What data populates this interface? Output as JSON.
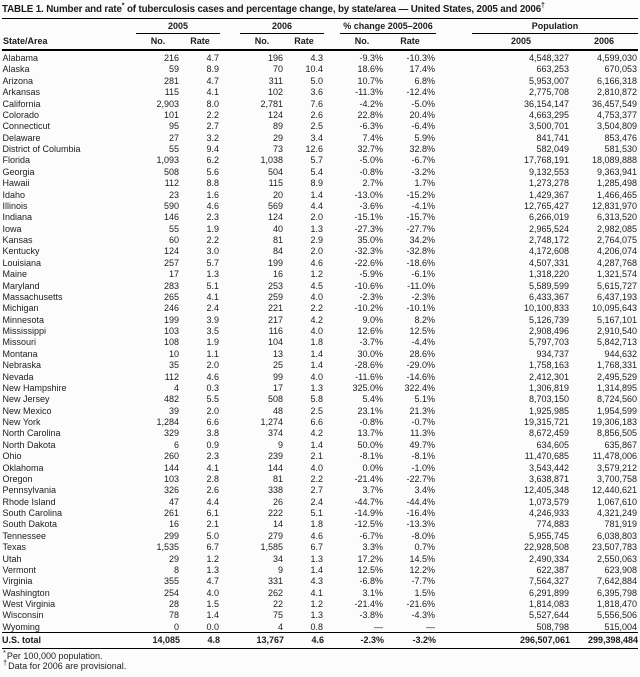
{
  "title": {
    "part1": "TABLE 1. Number and rate",
    "sup1": "*",
    "part2": " of tuberculosis cases and percentage change, by state/area — United States, 2005 and 2006",
    "sup2": "†"
  },
  "table": {
    "col_state": "State/Area",
    "groups": [
      {
        "label": "2005",
        "sub": [
          "No.",
          "Rate"
        ]
      },
      {
        "label": "2006",
        "sub": [
          "No.",
          "Rate"
        ]
      },
      {
        "label": "% change 2005–2006",
        "sub": [
          "No.",
          "Rate"
        ]
      },
      {
        "label": "Population",
        "sub": [
          "2005",
          "2006"
        ]
      }
    ],
    "rows": [
      [
        "Alabama",
        "216",
        "4.7",
        "196",
        "4.3",
        "-9.3%",
        "-10.3%",
        "4,548,327",
        "4,599,030"
      ],
      [
        "Alaska",
        "59",
        "8.9",
        "70",
        "10.4",
        "18.6%",
        "17.4%",
        "663,253",
        "670,053"
      ],
      [
        "Arizona",
        "281",
        "4.7",
        "311",
        "5.0",
        "10.7%",
        "6.8%",
        "5,953,007",
        "6,166,318"
      ],
      [
        "Arkansas",
        "115",
        "4.1",
        "102",
        "3.6",
        "-11.3%",
        "-12.4%",
        "2,775,708",
        "2,810,872"
      ],
      [
        "California",
        "2,903",
        "8.0",
        "2,781",
        "7.6",
        "-4.2%",
        "-5.0%",
        "36,154,147",
        "36,457,549"
      ],
      [
        "Colorado",
        "101",
        "2.2",
        "124",
        "2.6",
        "22.8%",
        "20.4%",
        "4,663,295",
        "4,753,377"
      ],
      [
        "Connecticut",
        "95",
        "2.7",
        "89",
        "2.5",
        "-6.3%",
        "-6.4%",
        "3,500,701",
        "3,504,809"
      ],
      [
        "Delaware",
        "27",
        "3.2",
        "29",
        "3.4",
        "7.4%",
        "5.9%",
        "841,741",
        "853,476"
      ],
      [
        "District of Columbia",
        "55",
        "9.4",
        "73",
        "12.6",
        "32.7%",
        "32.8%",
        "582,049",
        "581,530"
      ],
      [
        "Florida",
        "1,093",
        "6.2",
        "1,038",
        "5.7",
        "-5.0%",
        "-6.7%",
        "17,768,191",
        "18,089,888"
      ],
      [
        "Georgia",
        "508",
        "5.6",
        "504",
        "5.4",
        "-0.8%",
        "-3.2%",
        "9,132,553",
        "9,363,941"
      ],
      [
        "Hawaii",
        "112",
        "8.8",
        "115",
        "8.9",
        "2.7%",
        "1.7%",
        "1,273,278",
        "1,285,498"
      ],
      [
        "Idaho",
        "23",
        "1.6",
        "20",
        "1.4",
        "-13.0%",
        "-15.2%",
        "1,429,367",
        "1,466,465"
      ],
      [
        "Illinois",
        "590",
        "4.6",
        "569",
        "4.4",
        "-3.6%",
        "-4.1%",
        "12,765,427",
        "12,831,970"
      ],
      [
        "Indiana",
        "146",
        "2.3",
        "124",
        "2.0",
        "-15.1%",
        "-15.7%",
        "6,266,019",
        "6,313,520"
      ],
      [
        "Iowa",
        "55",
        "1.9",
        "40",
        "1.3",
        "-27.3%",
        "-27.7%",
        "2,965,524",
        "2,982,085"
      ],
      [
        "Kansas",
        "60",
        "2.2",
        "81",
        "2.9",
        "35.0%",
        "34.2%",
        "2,748,172",
        "2,764,075"
      ],
      [
        "Kentucky",
        "124",
        "3.0",
        "84",
        "2.0",
        "-32.3%",
        "-32.8%",
        "4,172,608",
        "4,206,074"
      ],
      [
        "Louisiana",
        "257",
        "5.7",
        "199",
        "4.6",
        "-22.6%",
        "-18.6%",
        "4,507,331",
        "4,287,768"
      ],
      [
        "Maine",
        "17",
        "1.3",
        "16",
        "1.2",
        "-5.9%",
        "-6.1%",
        "1,318,220",
        "1,321,574"
      ],
      [
        "Maryland",
        "283",
        "5.1",
        "253",
        "4.5",
        "-10.6%",
        "-11.0%",
        "5,589,599",
        "5,615,727"
      ],
      [
        "Massachusetts",
        "265",
        "4.1",
        "259",
        "4.0",
        "-2.3%",
        "-2.3%",
        "6,433,367",
        "6,437,193"
      ],
      [
        "Michigan",
        "246",
        "2.4",
        "221",
        "2.2",
        "-10.2%",
        "-10.1%",
        "10,100,833",
        "10,095,643"
      ],
      [
        "Minnesota",
        "199",
        "3.9",
        "217",
        "4.2",
        "9.0%",
        "8.2%",
        "5,126,739",
        "5,167,101"
      ],
      [
        "Mississippi",
        "103",
        "3.5",
        "116",
        "4.0",
        "12.6%",
        "12.5%",
        "2,908,496",
        "2,910,540"
      ],
      [
        "Missouri",
        "108",
        "1.9",
        "104",
        "1.8",
        "-3.7%",
        "-4.4%",
        "5,797,703",
        "5,842,713"
      ],
      [
        "Montana",
        "10",
        "1.1",
        "13",
        "1.4",
        "30.0%",
        "28.6%",
        "934,737",
        "944,632"
      ],
      [
        "Nebraska",
        "35",
        "2.0",
        "25",
        "1.4",
        "-28.6%",
        "-29.0%",
        "1,758,163",
        "1,768,331"
      ],
      [
        "Nevada",
        "112",
        "4.6",
        "99",
        "4.0",
        "-11.6%",
        "-14.6%",
        "2,412,301",
        "2,495,529"
      ],
      [
        "New Hampshire",
        "4",
        "0.3",
        "17",
        "1.3",
        "325.0%",
        "322.4%",
        "1,306,819",
        "1,314,895"
      ],
      [
        "New Jersey",
        "482",
        "5.5",
        "508",
        "5.8",
        "5.4%",
        "5.1%",
        "8,703,150",
        "8,724,560"
      ],
      [
        "New Mexico",
        "39",
        "2.0",
        "48",
        "2.5",
        "23.1%",
        "21.3%",
        "1,925,985",
        "1,954,599"
      ],
      [
        "New York",
        "1,284",
        "6.6",
        "1,274",
        "6.6",
        "-0.8%",
        "-0.7%",
        "19,315,721",
        "19,306,183"
      ],
      [
        "North Carolina",
        "329",
        "3.8",
        "374",
        "4.2",
        "13.7%",
        "11.3%",
        "8,672,459",
        "8,856,505"
      ],
      [
        "North Dakota",
        "6",
        "0.9",
        "9",
        "1.4",
        "50.0%",
        "49.7%",
        "634,605",
        "635,867"
      ],
      [
        "Ohio",
        "260",
        "2.3",
        "239",
        "2.1",
        "-8.1%",
        "-8.1%",
        "11,470,685",
        "11,478,006"
      ],
      [
        "Oklahoma",
        "144",
        "4.1",
        "144",
        "4.0",
        "0.0%",
        "-1.0%",
        "3,543,442",
        "3,579,212"
      ],
      [
        "Oregon",
        "103",
        "2.8",
        "81",
        "2.2",
        "-21.4%",
        "-22.7%",
        "3,638,871",
        "3,700,758"
      ],
      [
        "Pennsylvania",
        "326",
        "2.6",
        "338",
        "2.7",
        "3.7%",
        "3.4%",
        "12,405,348",
        "12,440,621"
      ],
      [
        "Rhode Island",
        "47",
        "4.4",
        "26",
        "2.4",
        "-44.7%",
        "-44.4%",
        "1,073,579",
        "1,067,610"
      ],
      [
        "South Carolina",
        "261",
        "6.1",
        "222",
        "5.1",
        "-14.9%",
        "-16.4%",
        "4,246,933",
        "4,321,249"
      ],
      [
        "South Dakota",
        "16",
        "2.1",
        "14",
        "1.8",
        "-12.5%",
        "-13.3%",
        "774,883",
        "781,919"
      ],
      [
        "Tennessee",
        "299",
        "5.0",
        "279",
        "4.6",
        "-6.7%",
        "-8.0%",
        "5,955,745",
        "6,038,803"
      ],
      [
        "Texas",
        "1,535",
        "6.7",
        "1,585",
        "6.7",
        "3.3%",
        "0.7%",
        "22,928,508",
        "23,507,783"
      ],
      [
        "Utah",
        "29",
        "1.2",
        "34",
        "1.3",
        "17.2%",
        "14.5%",
        "2,490,334",
        "2,550,063"
      ],
      [
        "Vermont",
        "8",
        "1.3",
        "9",
        "1.4",
        "12.5%",
        "12.2%",
        "622,387",
        "623,908"
      ],
      [
        "Virginia",
        "355",
        "4.7",
        "331",
        "4.3",
        "-6.8%",
        "-7.7%",
        "7,564,327",
        "7,642,884"
      ],
      [
        "Washington",
        "254",
        "4.0",
        "262",
        "4.1",
        "3.1%",
        "1.5%",
        "6,291,899",
        "6,395,798"
      ],
      [
        "West Virginia",
        "28",
        "1.5",
        "22",
        "1.2",
        "-21.4%",
        "-21.6%",
        "1,814,083",
        "1,818,470"
      ],
      [
        "Wisconsin",
        "78",
        "1.4",
        "75",
        "1.3",
        "-3.8%",
        "-4.3%",
        "5,527,644",
        "5,556,506"
      ],
      [
        "Wyoming",
        "0",
        "0.0",
        "4",
        "0.8",
        "—",
        "—",
        "508,798",
        "515,004"
      ]
    ],
    "total": [
      "U.S. total",
      "14,085",
      "4.8",
      "13,767",
      "4.6",
      "-2.3%",
      "-3.2%",
      "296,507,061",
      "299,398,484"
    ]
  },
  "footnotes": [
    {
      "marker": "*",
      "text": "Per 100,000 population."
    },
    {
      "marker": "†",
      "text": "Data for 2006 are provisional."
    }
  ]
}
